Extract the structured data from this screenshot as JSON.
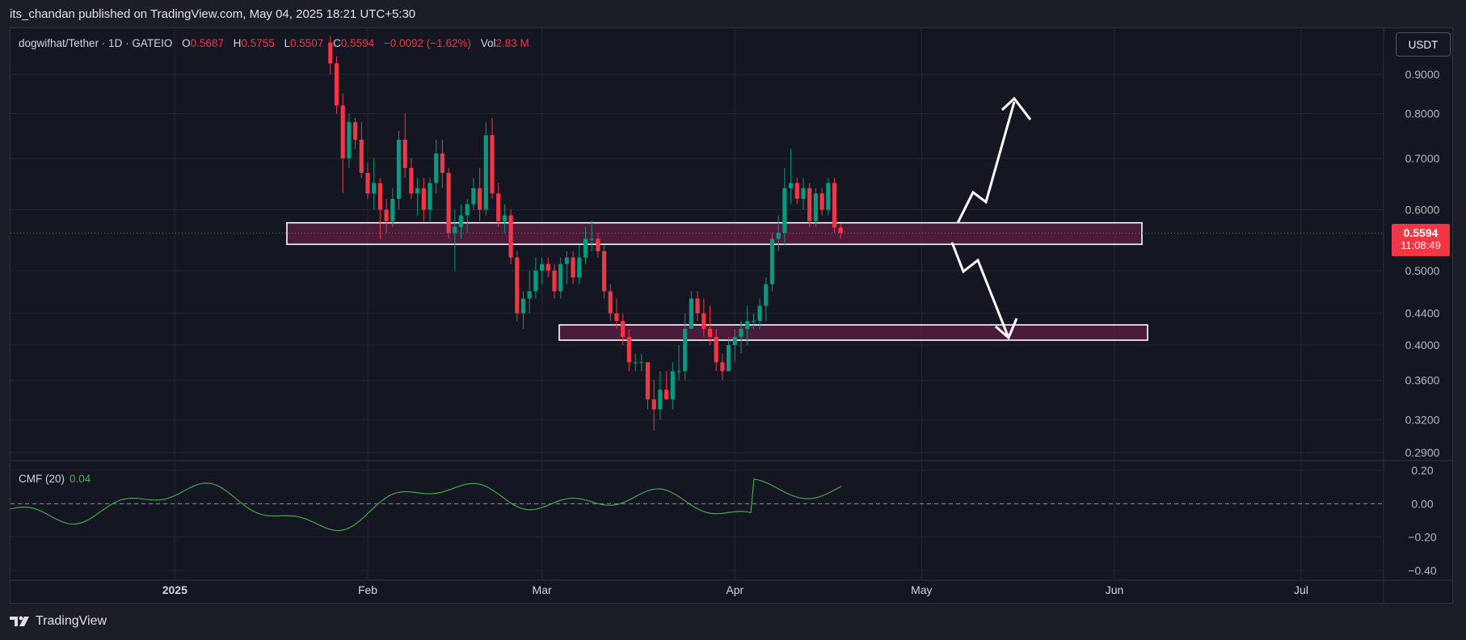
{
  "publisher_line": "its_chandan published on TradingView.com, May 04, 2025 18:21 UTC+5:30",
  "legend": {
    "symbol": "dogwifhat/Tether · 1D · GATEIO",
    "o_label": "O",
    "o_value": "0.5687",
    "h_label": "H",
    "h_value": "0.5755",
    "l_label": "L",
    "l_value": "0.5507",
    "c_label": "C",
    "c_value": "0.5594",
    "change": "−0.0092 (−1.62%)",
    "vol_label": "Vol",
    "vol_value": "2.83 M"
  },
  "currency_button": "USDT",
  "price_tag": {
    "price": "0.5594",
    "countdown": "11:08:49"
  },
  "indicator": {
    "name": "CMF (20)",
    "value": "0.04"
  },
  "brand": "TradingView",
  "colors": {
    "up": "#089981",
    "down": "#f23645",
    "cmf": "#4caf50",
    "zone": "#5e1e44",
    "arrow": "#ffffff"
  },
  "chart_data": {
    "type": "candlestick",
    "log_scale": true,
    "y_ticks": [
      "0.9000",
      "0.8000",
      "0.7000",
      "0.6000",
      "0.5000",
      "0.4400",
      "0.4000",
      "0.3600",
      "0.3200",
      "0.2900"
    ],
    "x_ticks": [
      "2025",
      "Feb",
      "Mar",
      "Apr",
      "May",
      "Jun",
      "Jul"
    ],
    "current_price": 0.5594,
    "candles": [
      [
        "2025-01-26",
        0.99,
        1.01,
        0.9,
        0.93
      ],
      [
        "2025-01-27",
        0.93,
        0.95,
        0.8,
        0.82
      ],
      [
        "2025-01-28",
        0.82,
        0.85,
        0.63,
        0.7
      ],
      [
        "2025-01-29",
        0.7,
        0.8,
        0.68,
        0.78
      ],
      [
        "2025-01-30",
        0.78,
        0.79,
        0.72,
        0.74
      ],
      [
        "2025-01-31",
        0.74,
        0.78,
        0.66,
        0.67
      ],
      [
        "2025-02-01",
        0.67,
        0.69,
        0.62,
        0.63
      ],
      [
        "2025-02-02",
        0.63,
        0.7,
        0.6,
        0.65
      ],
      [
        "2025-02-03",
        0.65,
        0.66,
        0.55,
        0.6
      ],
      [
        "2025-02-04",
        0.6,
        0.62,
        0.56,
        0.58
      ],
      [
        "2025-02-05",
        0.58,
        0.64,
        0.57,
        0.62
      ],
      [
        "2025-02-06",
        0.62,
        0.76,
        0.6,
        0.74
      ],
      [
        "2025-02-07",
        0.74,
        0.8,
        0.66,
        0.68
      ],
      [
        "2025-02-08",
        0.68,
        0.7,
        0.62,
        0.63
      ],
      [
        "2025-02-09",
        0.63,
        0.66,
        0.59,
        0.64
      ],
      [
        "2025-02-10",
        0.64,
        0.66,
        0.58,
        0.6
      ],
      [
        "2025-02-11",
        0.6,
        0.66,
        0.58,
        0.65
      ],
      [
        "2025-02-12",
        0.65,
        0.74,
        0.63,
        0.71
      ],
      [
        "2025-02-13",
        0.71,
        0.74,
        0.64,
        0.67
      ],
      [
        "2025-02-14",
        0.67,
        0.68,
        0.55,
        0.56
      ],
      [
        "2025-02-15",
        0.56,
        0.6,
        0.5,
        0.57
      ],
      [
        "2025-02-16",
        0.57,
        0.61,
        0.55,
        0.59
      ],
      [
        "2025-02-17",
        0.59,
        0.62,
        0.56,
        0.61
      ],
      [
        "2025-02-18",
        0.61,
        0.66,
        0.6,
        0.64
      ],
      [
        "2025-02-19",
        0.64,
        0.68,
        0.58,
        0.6
      ],
      [
        "2025-02-20",
        0.6,
        0.78,
        0.59,
        0.75
      ],
      [
        "2025-02-21",
        0.75,
        0.79,
        0.62,
        0.63
      ],
      [
        "2025-02-22",
        0.63,
        0.65,
        0.57,
        0.58
      ],
      [
        "2025-02-23",
        0.58,
        0.61,
        0.56,
        0.59
      ],
      [
        "2025-02-24",
        0.59,
        0.6,
        0.51,
        0.52
      ],
      [
        "2025-02-25",
        0.52,
        0.53,
        0.43,
        0.44
      ],
      [
        "2025-02-26",
        0.44,
        0.47,
        0.42,
        0.46
      ],
      [
        "2025-02-27",
        0.46,
        0.5,
        0.44,
        0.47
      ],
      [
        "2025-02-28",
        0.47,
        0.52,
        0.46,
        0.5
      ],
      [
        "2025-03-01",
        0.5,
        0.52,
        0.48,
        0.51
      ],
      [
        "2025-03-02",
        0.51,
        0.52,
        0.49,
        0.5
      ],
      [
        "2025-03-03",
        0.5,
        0.51,
        0.46,
        0.47
      ],
      [
        "2025-03-04",
        0.47,
        0.52,
        0.46,
        0.51
      ],
      [
        "2025-03-05",
        0.51,
        0.53,
        0.48,
        0.52
      ],
      [
        "2025-03-06",
        0.52,
        0.53,
        0.48,
        0.49
      ],
      [
        "2025-03-07",
        0.49,
        0.54,
        0.48,
        0.52
      ],
      [
        "2025-03-08",
        0.52,
        0.57,
        0.51,
        0.55
      ],
      [
        "2025-03-09",
        0.55,
        0.58,
        0.53,
        0.55
      ],
      [
        "2025-03-10",
        0.55,
        0.56,
        0.52,
        0.53
      ],
      [
        "2025-03-11",
        0.53,
        0.54,
        0.46,
        0.47
      ],
      [
        "2025-03-12",
        0.47,
        0.48,
        0.43,
        0.44
      ],
      [
        "2025-03-13",
        0.44,
        0.46,
        0.42,
        0.43
      ],
      [
        "2025-03-14",
        0.43,
        0.44,
        0.4,
        0.41
      ],
      [
        "2025-03-15",
        0.41,
        0.42,
        0.37,
        0.38
      ],
      [
        "2025-03-16",
        0.38,
        0.39,
        0.37,
        0.38
      ],
      [
        "2025-03-17",
        0.38,
        0.39,
        0.37,
        0.38
      ],
      [
        "2025-03-18",
        0.38,
        0.38,
        0.33,
        0.34
      ],
      [
        "2025-03-19",
        0.34,
        0.36,
        0.31,
        0.33
      ],
      [
        "2025-03-20",
        0.33,
        0.37,
        0.32,
        0.35
      ],
      [
        "2025-03-21",
        0.35,
        0.37,
        0.34,
        0.34
      ],
      [
        "2025-03-22",
        0.34,
        0.38,
        0.33,
        0.37
      ],
      [
        "2025-03-23",
        0.37,
        0.4,
        0.36,
        0.37
      ],
      [
        "2025-03-24",
        0.37,
        0.44,
        0.36,
        0.42
      ],
      [
        "2025-03-25",
        0.42,
        0.47,
        0.42,
        0.46
      ],
      [
        "2025-03-26",
        0.46,
        0.47,
        0.43,
        0.44
      ],
      [
        "2025-03-27",
        0.44,
        0.46,
        0.41,
        0.42
      ],
      [
        "2025-03-28",
        0.42,
        0.45,
        0.4,
        0.41
      ],
      [
        "2025-03-29",
        0.41,
        0.42,
        0.37,
        0.38
      ],
      [
        "2025-03-30",
        0.38,
        0.39,
        0.36,
        0.37
      ],
      [
        "2025-03-31",
        0.37,
        0.41,
        0.37,
        0.4
      ],
      [
        "2025-04-01",
        0.4,
        0.42,
        0.38,
        0.41
      ],
      [
        "2025-04-02",
        0.41,
        0.43,
        0.39,
        0.42
      ],
      [
        "2025-04-03",
        0.42,
        0.45,
        0.4,
        0.43
      ],
      [
        "2025-04-04",
        0.43,
        0.44,
        0.42,
        0.43
      ],
      [
        "2025-04-05",
        0.43,
        0.46,
        0.42,
        0.45
      ],
      [
        "2025-04-06",
        0.45,
        0.49,
        0.43,
        0.48
      ],
      [
        "2025-04-07",
        0.48,
        0.56,
        0.47,
        0.55
      ],
      [
        "2025-04-08",
        0.55,
        0.59,
        0.53,
        0.56
      ],
      [
        "2025-04-09",
        0.56,
        0.68,
        0.54,
        0.64
      ],
      [
        "2025-04-10",
        0.64,
        0.72,
        0.61,
        0.65
      ],
      [
        "2025-04-11",
        0.65,
        0.66,
        0.61,
        0.62
      ],
      [
        "2025-04-12",
        0.62,
        0.66,
        0.6,
        0.64
      ],
      [
        "2025-04-13",
        0.64,
        0.65,
        0.57,
        0.58
      ],
      [
        "2025-04-14",
        0.58,
        0.64,
        0.57,
        0.63
      ],
      [
        "2025-04-15",
        0.63,
        0.64,
        0.59,
        0.6
      ],
      [
        "2025-04-16",
        0.6,
        0.66,
        0.59,
        0.65
      ],
      [
        "2025-04-17",
        0.65,
        0.66,
        0.56,
        0.5687
      ],
      [
        "2025-04-18",
        0.5687,
        0.5755,
        0.5507,
        0.5594
      ]
    ],
    "cmf": {
      "name": "CMF (20)",
      "y_ticks": [
        "0.20",
        "0.00",
        "−0.20",
        "−0.40"
      ],
      "ylim": [
        -0.42,
        0.22
      ]
    }
  }
}
